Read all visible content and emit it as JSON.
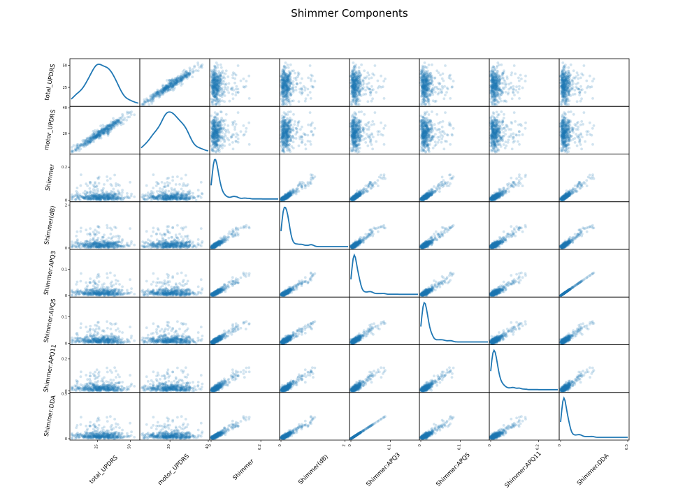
{
  "chart_data": {
    "type": "scatter",
    "title": "Shimmer Components",
    "variables": [
      {
        "name": "total_UPDRS",
        "range": [
          5,
          56
        ],
        "ticks": [
          25,
          50
        ]
      },
      {
        "name": "motor_UPDRS",
        "range": [
          5,
          40
        ],
        "ticks": [
          20,
          40
        ]
      },
      {
        "name": "Shimmer",
        "range": [
          0,
          0.27
        ],
        "ticks": [
          0,
          0.2
        ]
      },
      {
        "name": "Shimmer(dB)",
        "range": [
          0,
          2.1
        ],
        "ticks": [
          0,
          2
        ]
      },
      {
        "name": "Shimmer:APQ3",
        "range": [
          0,
          0.17
        ],
        "ticks": [
          0,
          0.1
        ]
      },
      {
        "name": "Shimmer:APQ5",
        "range": [
          0,
          0.17
        ],
        "ticks": [
          0,
          0.1
        ]
      },
      {
        "name": "Shimmer:APQ11",
        "range": [
          0,
          0.28
        ],
        "ticks": [
          0,
          0.2
        ]
      },
      {
        "name": "Shimmer:DDA",
        "range": [
          0,
          0.5
        ],
        "ticks": [
          0,
          0.5
        ]
      }
    ],
    "diagonal": "kde",
    "offdiagonal": "scatter",
    "point_color": "#1f77b4",
    "point_alpha": 0.2,
    "grid": false,
    "legend": "none"
  }
}
